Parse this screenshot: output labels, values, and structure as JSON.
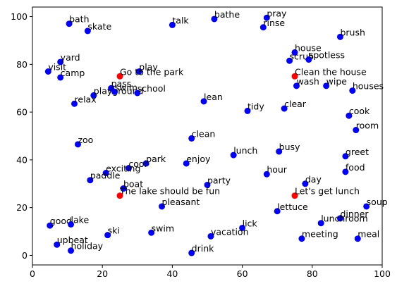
{
  "chart_data": {
    "type": "scatter",
    "title": "",
    "xlabel": "",
    "ylabel": "",
    "xlim": [
      0,
      100
    ],
    "ylim": [
      -4,
      104
    ],
    "grid": false,
    "xticks": [
      "0",
      "20",
      "40",
      "60",
      "80",
      "100"
    ],
    "yticks": [
      "0",
      "20",
      "40",
      "60",
      "80",
      "100"
    ],
    "colors": {
      "word": "#0000ff",
      "phrase": "#ff0000",
      "axis": "#000000",
      "background": "#ffffff"
    },
    "series": [
      {
        "kind": "word",
        "points": [
          {
            "label": "bath",
            "x": 10.5,
            "y": 97
          },
          {
            "label": "skate",
            "x": 15.8,
            "y": 94
          },
          {
            "label": "talk",
            "x": 40,
            "y": 96.5
          },
          {
            "label": "bathe",
            "x": 52,
            "y": 99
          },
          {
            "label": "pray",
            "x": 67,
            "y": 99.5
          },
          {
            "label": "rinse",
            "x": 66,
            "y": 95.5
          },
          {
            "label": "brush",
            "x": 88,
            "y": 91.5
          },
          {
            "label": "yard",
            "x": 8,
            "y": 81
          },
          {
            "label": "visit",
            "x": 4.5,
            "y": 77
          },
          {
            "label": "camp",
            "x": 8,
            "y": 74.5
          },
          {
            "label": "house",
            "x": 75,
            "y": 85
          },
          {
            "label": "scrub",
            "x": 73.5,
            "y": 81.5
          },
          {
            "label": "spotless",
            "x": 79,
            "y": 82
          },
          {
            "label": "play",
            "x": 30.5,
            "y": 77
          },
          {
            "label": "wash",
            "x": 75.5,
            "y": 71
          },
          {
            "label": "wipe",
            "x": 84,
            "y": 71
          },
          {
            "label": "houses",
            "x": 91.5,
            "y": 69
          },
          {
            "label": "pass",
            "x": 22.5,
            "y": 70
          },
          {
            "label": "playground",
            "x": 17.5,
            "y": 67
          },
          {
            "label": "swim",
            "x": 23.5,
            "y": 68.5
          },
          {
            "label": "school",
            "x": 30,
            "y": 68
          },
          {
            "label": "relax",
            "x": 12,
            "y": 63.5
          },
          {
            "label": "lean",
            "x": 49,
            "y": 64.5
          },
          {
            "label": "tidy",
            "x": 61.5,
            "y": 60.5
          },
          {
            "label": "clear",
            "x": 72,
            "y": 61.5
          },
          {
            "label": "cook",
            "x": 90.5,
            "y": 58.5
          },
          {
            "label": "room",
            "x": 92.5,
            "y": 52.5
          },
          {
            "label": "clean",
            "x": 45.5,
            "y": 49
          },
          {
            "label": "zoo",
            "x": 13,
            "y": 46.5
          },
          {
            "label": "busy",
            "x": 70.5,
            "y": 43.5
          },
          {
            "label": "lunch",
            "x": 57.5,
            "y": 42
          },
          {
            "label": "greet",
            "x": 89.5,
            "y": 41.5
          },
          {
            "label": "park",
            "x": 32.5,
            "y": 38.5
          },
          {
            "label": "cool",
            "x": 27.5,
            "y": 36.5
          },
          {
            "label": "enjoy",
            "x": 44,
            "y": 38.5
          },
          {
            "label": "exciting",
            "x": 21,
            "y": 34.5
          },
          {
            "label": "food",
            "x": 89.5,
            "y": 35
          },
          {
            "label": "hour",
            "x": 67,
            "y": 34
          },
          {
            "label": "paddle",
            "x": 16.5,
            "y": 31.5
          },
          {
            "label": "party",
            "x": 50,
            "y": 29.5
          },
          {
            "label": "day",
            "x": 78,
            "y": 30
          },
          {
            "label": "boat",
            "x": 26,
            "y": 28
          },
          {
            "label": "pleasant",
            "x": 37,
            "y": 20.5
          },
          {
            "label": "soup",
            "x": 95.5,
            "y": 20.5
          },
          {
            "label": "lettuce",
            "x": 70,
            "y": 18.5
          },
          {
            "label": "good",
            "x": 5,
            "y": 12.5
          },
          {
            "label": "lake",
            "x": 11,
            "y": 13
          },
          {
            "label": "dinner",
            "x": 88,
            "y": 15.5
          },
          {
            "label": "lunchroom",
            "x": 82.5,
            "y": 13.5
          },
          {
            "label": "lick",
            "x": 60,
            "y": 11.5
          },
          {
            "label": "ski",
            "x": 21.5,
            "y": 8.5
          },
          {
            "label": "swim",
            "x": 34,
            "y": 9.5
          },
          {
            "label": "vacation",
            "x": 51,
            "y": 8
          },
          {
            "label": "meeting",
            "x": 77,
            "y": 7
          },
          {
            "label": "meal",
            "x": 93,
            "y": 7
          },
          {
            "label": "upbeat",
            "x": 7,
            "y": 4.5
          },
          {
            "label": "holiday",
            "x": 11,
            "y": 2
          },
          {
            "label": "drink",
            "x": 45.5,
            "y": 1
          }
        ]
      },
      {
        "kind": "phrase",
        "points": [
          {
            "label": "Go to the park",
            "x": 25,
            "y": 75
          },
          {
            "label": "Clean the house",
            "x": 75,
            "y": 75
          },
          {
            "label": "The lake should be fun",
            "x": 25,
            "y": 25
          },
          {
            "label": "Let's get lunch",
            "x": 75,
            "y": 25
          }
        ]
      }
    ]
  }
}
